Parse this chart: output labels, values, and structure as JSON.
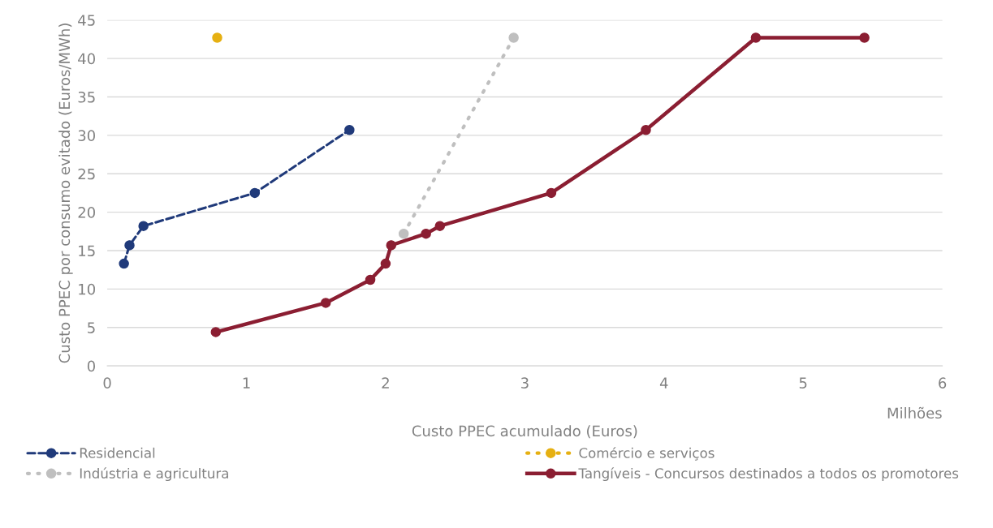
{
  "chart_data": {
    "type": "line",
    "xlabel": "Custo PPEC acumulado (Euros)",
    "ylabel": "Custo PPEC por consumo evitado (Euros/MWh)",
    "annotations": [
      "Milhões"
    ],
    "xlim": [
      0,
      6
    ],
    "xticks": [
      0,
      1,
      2,
      3,
      4,
      5,
      6
    ],
    "ylim": [
      0,
      45
    ],
    "yticks": [
      0,
      5,
      10,
      15,
      20,
      25,
      30,
      35,
      40,
      45
    ],
    "grid": "y",
    "legend": "bottom",
    "marker": "circle",
    "series": [
      {
        "name": "Residencial",
        "color": "#203a7a",
        "line_style": "dashed",
        "x": [
          0.12,
          0.16,
          0.26,
          1.06,
          1.74
        ],
        "values": [
          13.3,
          15.7,
          18.2,
          22.5,
          30.7
        ]
      },
      {
        "name": "Comércio e serviços",
        "color": "#e6b012",
        "line_style": "dotted",
        "x": [
          0.79
        ],
        "values": [
          42.7
        ]
      },
      {
        "name": "Indústria e agricultura",
        "color": "#bfbfbf",
        "line_style": "dotted",
        "x": [
          2.13,
          2.92
        ],
        "values": [
          17.2,
          42.7
        ]
      },
      {
        "name": "Tangíveis - Concursos destinados a todos os promotores",
        "color": "#8b1e32",
        "line_style": "solid",
        "x": [
          0.78,
          1.57,
          1.89,
          2.0,
          2.04,
          2.29,
          2.39,
          3.19,
          3.87,
          4.66,
          5.44
        ],
        "values": [
          4.4,
          8.2,
          11.2,
          13.3,
          15.7,
          17.2,
          18.2,
          22.5,
          30.7,
          42.7,
          42.7
        ]
      }
    ]
  }
}
